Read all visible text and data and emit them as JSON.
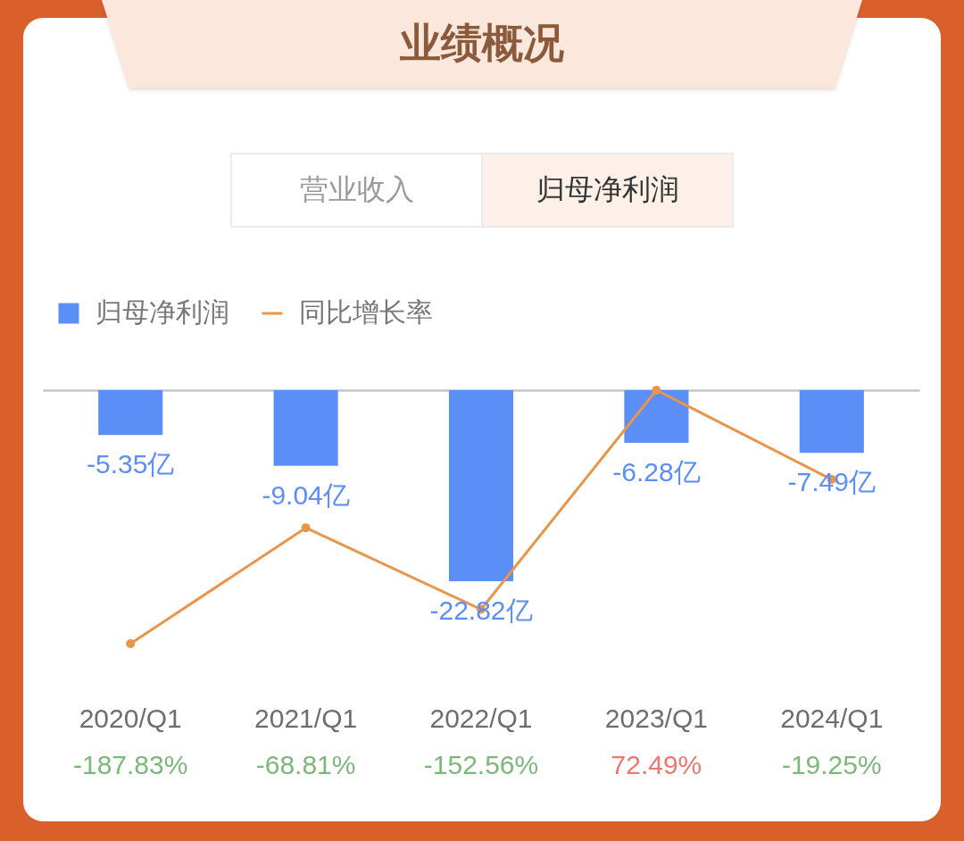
{
  "chart_data": {
    "type": "bar",
    "title": "业绩概况",
    "annotations": [
      "营业收入",
      "归母净利润"
    ],
    "categories": [
      "2020/Q1",
      "2021/Q1",
      "2022/Q1",
      "2023/Q1",
      "2024/Q1"
    ],
    "series": [
      {
        "name": "归母净利润",
        "axis": "y2",
        "color": "#5b8ef6",
        "values": [
          -5.35,
          -9.04,
          -22.82,
          -6.28,
          -7.49
        ],
        "value_labels": [
          "-5.35亿",
          "-9.04亿",
          "-22.82亿",
          "-6.28亿",
          "-7.49亿"
        ]
      },
      {
        "name": "同比增长率",
        "type": "line",
        "color": "#e8964c",
        "values": [
          -187.83,
          -68.81,
          -152.56,
          72.49,
          -19.25
        ],
        "value_labels": [
          "-187.83%",
          "-68.81%",
          "-152.56%",
          "72.49%",
          "-19.25%"
        ]
      }
    ],
    "legend": "top left",
    "tick_labels": "x",
    "marker": "circle"
  }
}
